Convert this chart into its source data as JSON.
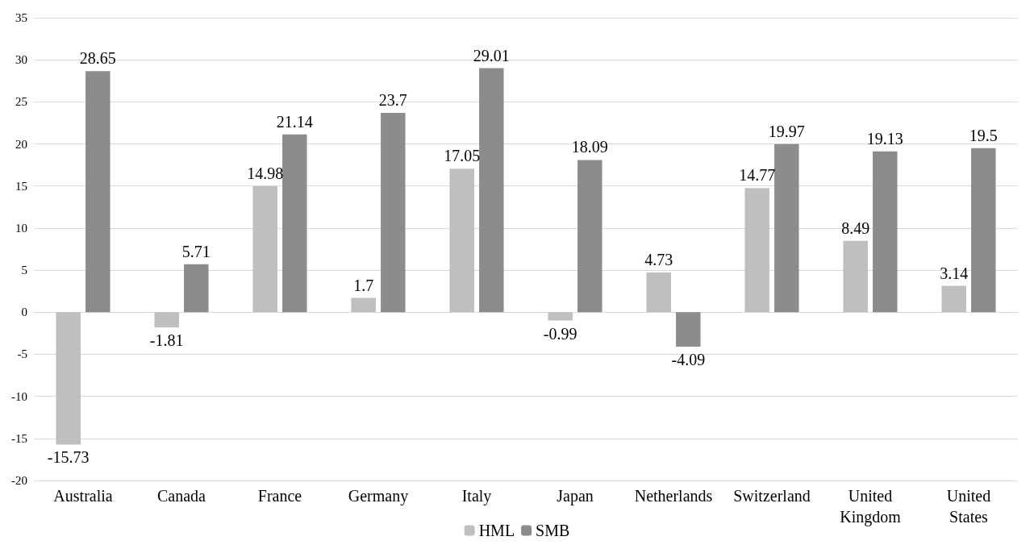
{
  "chart_data": {
    "type": "bar",
    "categories": [
      "Australia",
      "Canada",
      "France",
      "Germany",
      "Italy",
      "Japan",
      "Netherlands",
      "Switzerland",
      "United Kingdom",
      "United States"
    ],
    "series": [
      {
        "name": "HML",
        "color": "#bfbfbf",
        "values": [
          -15.73,
          -1.81,
          14.98,
          1.7,
          17.05,
          -0.99,
          4.73,
          14.77,
          8.49,
          3.14
        ]
      },
      {
        "name": "SMB",
        "color": "#8c8c8c",
        "values": [
          28.65,
          5.71,
          21.14,
          23.7,
          29.01,
          18.09,
          -4.09,
          19.97,
          19.13,
          19.5
        ]
      }
    ],
    "ylim": [
      -20,
      35
    ],
    "yticks": [
      -20,
      -15,
      -10,
      -5,
      0,
      5,
      10,
      15,
      20,
      25,
      30,
      35
    ],
    "grid": "y",
    "legend": "bottom",
    "data_labels": true
  }
}
